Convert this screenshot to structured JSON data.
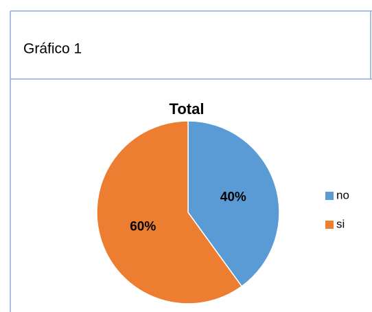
{
  "header": {
    "title": "Gráfico 1"
  },
  "chart_data": {
    "type": "pie",
    "title": "Total",
    "categories": [
      "no",
      "si"
    ],
    "values": [
      40,
      60
    ],
    "value_labels": [
      "40%",
      "60%"
    ],
    "colors": [
      "#5b9bd5",
      "#ed7d31"
    ],
    "legend": "right"
  }
}
